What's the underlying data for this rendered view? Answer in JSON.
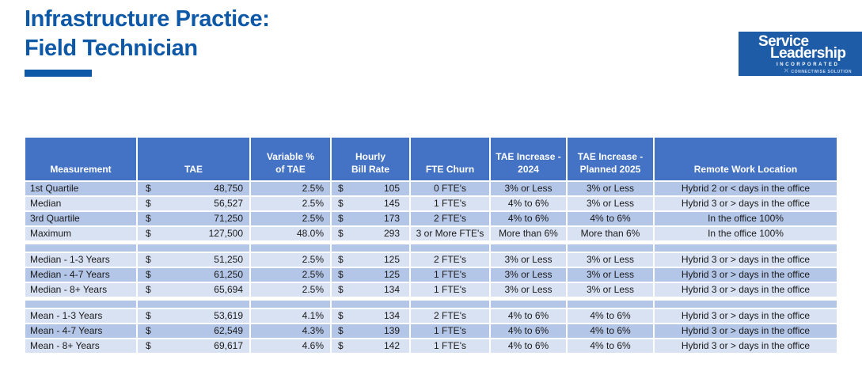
{
  "title": {
    "line1": "Infrastructure Practice:",
    "line2": "Field Technician"
  },
  "logo": {
    "word1": "Service",
    "word2": "Leadership",
    "word3": "INCORPORATED",
    "brand_mark": "CONNECTWISE SOLUTION"
  },
  "colors": {
    "title_blue": "#0e58a8",
    "logo_blue": "#1e5ca8",
    "header_blue": "#4472c4",
    "row_dark": "#b4c6e7",
    "row_light": "#d9e2f3"
  },
  "table": {
    "currency_symbol": "$",
    "headers": [
      "Measurement",
      "TAE",
      "Variable %\nof TAE",
      "Hourly\nBill Rate",
      "FTE Churn",
      "TAE Increase -\n2024",
      "TAE Increase -\nPlanned 2025",
      "Remote Work Location"
    ],
    "rows": [
      {
        "type": "data",
        "shade": "dark",
        "measurement": "1st Quartile",
        "tae": "48,750",
        "variable_pct": "2.5%",
        "bill_rate": "105",
        "fte_churn": "0 FTE's",
        "tae_increase_2024": "3% or Less",
        "tae_increase_planned_2025": "3% or Less",
        "remote_work": "Hybrid 2 or < days in the office"
      },
      {
        "type": "data",
        "shade": "light",
        "measurement": "Median",
        "tae": "56,527",
        "variable_pct": "2.5%",
        "bill_rate": "145",
        "fte_churn": "1 FTE's",
        "tae_increase_2024": "4% to 6%",
        "tae_increase_planned_2025": "3% or Less",
        "remote_work": "Hybrid 3 or > days in the office"
      },
      {
        "type": "data",
        "shade": "dark",
        "measurement": "3rd Quartile",
        "tae": "71,250",
        "variable_pct": "2.5%",
        "bill_rate": "173",
        "fte_churn": "2 FTE's",
        "tae_increase_2024": "4% to 6%",
        "tae_increase_planned_2025": "4% to 6%",
        "remote_work": "In the office 100%"
      },
      {
        "type": "data",
        "shade": "light",
        "measurement": "Maximum",
        "tae": "127,500",
        "variable_pct": "48.0%",
        "bill_rate": "293",
        "fte_churn": "3 or More FTE's",
        "tae_increase_2024": "More than 6%",
        "tae_increase_planned_2025": "More than 6%",
        "remote_work": "In the office 100%"
      },
      {
        "type": "gap"
      },
      {
        "type": "data",
        "shade": "light",
        "measurement": "Median - 1-3 Years",
        "tae": "51,250",
        "variable_pct": "2.5%",
        "bill_rate": "125",
        "fte_churn": "2 FTE's",
        "tae_increase_2024": "3% or Less",
        "tae_increase_planned_2025": "3% or Less",
        "remote_work": "Hybrid 3 or > days in the office"
      },
      {
        "type": "data",
        "shade": "dark",
        "measurement": "Median - 4-7 Years",
        "tae": "61,250",
        "variable_pct": "2.5%",
        "bill_rate": "125",
        "fte_churn": "1 FTE's",
        "tae_increase_2024": "3% or Less",
        "tae_increase_planned_2025": "3% or Less",
        "remote_work": "Hybrid 3 or > days in the office"
      },
      {
        "type": "data",
        "shade": "light",
        "measurement": "Median - 8+ Years",
        "tae": "65,694",
        "variable_pct": "2.5%",
        "bill_rate": "134",
        "fte_churn": "1 FTE's",
        "tae_increase_2024": "3% or Less",
        "tae_increase_planned_2025": "3% or Less",
        "remote_work": "Hybrid 3 or > days in the office"
      },
      {
        "type": "gap"
      },
      {
        "type": "data",
        "shade": "light",
        "measurement": "Mean - 1-3 Years",
        "tae": "53,619",
        "variable_pct": "4.1%",
        "bill_rate": "134",
        "fte_churn": "2 FTE's",
        "tae_increase_2024": "4% to 6%",
        "tae_increase_planned_2025": "4% to 6%",
        "remote_work": "Hybrid 3 or > days in the office"
      },
      {
        "type": "data",
        "shade": "dark",
        "measurement": "Mean - 4-7 Years",
        "tae": "62,549",
        "variable_pct": "4.3%",
        "bill_rate": "139",
        "fte_churn": "1 FTE's",
        "tae_increase_2024": "4% to 6%",
        "tae_increase_planned_2025": "4% to 6%",
        "remote_work": "Hybrid 3 or > days in the office"
      },
      {
        "type": "data",
        "shade": "light",
        "measurement": "Mean - 8+ Years",
        "tae": "69,617",
        "variable_pct": "4.6%",
        "bill_rate": "142",
        "fte_churn": "1 FTE's",
        "tae_increase_2024": "4% to 6%",
        "tae_increase_planned_2025": "4% to 6%",
        "remote_work": "Hybrid 3 or > days in the office"
      }
    ]
  }
}
